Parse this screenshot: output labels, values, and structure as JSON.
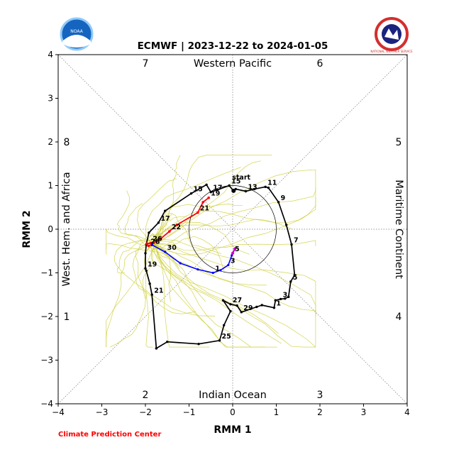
{
  "header": {
    "title": "ECMWF | 2023-12-22 to 2024-01-05",
    "left_logo_text": "NOAA",
    "right_logo_text": "NATIONAL WEATHER SERVICE"
  },
  "footer": {
    "credit": "Climate Prediction Center"
  },
  "colors": {
    "observed": "#000000",
    "dec": "#ff0000",
    "jan": "#0000ff",
    "forecast_mean": "#cc00cc",
    "ensemble": "#cccc33",
    "credit": "#ff0000"
  },
  "chart_data": {
    "type": "line",
    "title": "ECMWF | 2023-12-22 to 2024-01-05",
    "xlabel": "RMM 1",
    "ylabel": "RMM 2",
    "xlim": [
      -4,
      4
    ],
    "ylim": [
      -4,
      4
    ],
    "xticks": [
      -4,
      -3,
      -2,
      -1,
      0,
      1,
      2,
      3,
      4
    ],
    "yticks": [
      -4,
      -3,
      -2,
      -1,
      0,
      1,
      2,
      3,
      4
    ],
    "tick_labels": [
      "−4",
      "−3",
      "−2",
      "−1",
      "0",
      "1",
      "2",
      "3",
      "4"
    ],
    "unit_circle_radius": 1,
    "phases": [
      "1",
      "2",
      "3",
      "4",
      "5",
      "6",
      "7",
      "8"
    ],
    "regions": {
      "top": "Western Pacific",
      "bottom": "Indian Ocean",
      "left": "West. Hem. and Africa",
      "right": "Maritime Continent"
    },
    "start_label": "start",
    "observed_path": [
      {
        "x": -1.75,
        "y": -2.73,
        "l": ""
      },
      {
        "x": -1.5,
        "y": -2.58,
        "l": ""
      },
      {
        "x": -0.78,
        "y": -2.63,
        "l": ""
      },
      {
        "x": -0.3,
        "y": -2.55,
        "l": "25"
      },
      {
        "x": -0.2,
        "y": -2.2,
        "l": ""
      },
      {
        "x": -0.05,
        "y": -1.88,
        "l": ""
      },
      {
        "x": -0.22,
        "y": -1.63,
        "l": ""
      },
      {
        "x": -0.05,
        "y": -1.72,
        "l": "27"
      },
      {
        "x": 0.1,
        "y": -1.75,
        "l": ""
      },
      {
        "x": 0.2,
        "y": -1.9,
        "l": "29"
      },
      {
        "x": 0.55,
        "y": -1.78,
        "l": ""
      },
      {
        "x": 0.67,
        "y": -1.74,
        "l": ""
      },
      {
        "x": 0.95,
        "y": -1.8,
        "l": "1"
      },
      {
        "x": 0.98,
        "y": -1.63,
        "l": ""
      },
      {
        "x": 1.1,
        "y": -1.6,
        "l": "3"
      },
      {
        "x": 1.2,
        "y": -1.59,
        "l": ""
      },
      {
        "x": 1.28,
        "y": -1.55,
        "l": ""
      },
      {
        "x": 1.33,
        "y": -1.2,
        "l": "5"
      },
      {
        "x": 1.42,
        "y": -1.05,
        "l": ""
      },
      {
        "x": 1.35,
        "y": -0.35,
        "l": "7"
      },
      {
        "x": 1.23,
        "y": 0.1,
        "l": ""
      },
      {
        "x": 1.05,
        "y": 0.62,
        "l": "9"
      },
      {
        "x": 0.82,
        "y": 0.95,
        "l": ""
      },
      {
        "x": 0.75,
        "y": 0.97,
        "l": "11"
      },
      {
        "x": 0.5,
        "y": 0.92,
        "l": ""
      },
      {
        "x": 0.3,
        "y": 0.87,
        "l": "13"
      },
      {
        "x": 0.07,
        "y": 0.92,
        "l": ""
      },
      {
        "x": 0.02,
        "y": 0.88,
        "l": ""
      },
      {
        "x": -0.08,
        "y": 1.0,
        "l": "15"
      },
      {
        "x": -0.35,
        "y": 0.9,
        "l": ""
      },
      {
        "x": -0.5,
        "y": 0.85,
        "l": "17"
      },
      {
        "x": -0.6,
        "y": 1.02,
        "l": ""
      },
      {
        "x": -0.95,
        "y": 0.82,
        "l": "15"
      },
      {
        "x": -1.55,
        "y": 0.42,
        "l": ""
      },
      {
        "x": -1.7,
        "y": 0.15,
        "l": "17"
      },
      {
        "x": -1.92,
        "y": -0.08,
        "l": ""
      },
      {
        "x": -1.98,
        "y": -0.35,
        "l": ""
      },
      {
        "x": -2.0,
        "y": -0.55,
        "l": ""
      },
      {
        "x": -2.0,
        "y": -0.9,
        "l": "19"
      },
      {
        "x": -1.98,
        "y": -0.95,
        "l": ""
      },
      {
        "x": -1.9,
        "y": -1.25,
        "l": ""
      },
      {
        "x": -1.85,
        "y": -1.5,
        "l": "21"
      },
      {
        "x": -1.75,
        "y": -2.73,
        "l": ""
      }
    ],
    "forecast_dec": [
      {
        "x": -0.55,
        "y": 0.72,
        "l": "19"
      },
      {
        "x": -0.68,
        "y": 0.62,
        "l": ""
      },
      {
        "x": -0.8,
        "y": 0.38,
        "l": "21"
      },
      {
        "x": -1.28,
        "y": 0.1,
        "l": ""
      },
      {
        "x": -1.45,
        "y": -0.05,
        "l": "22"
      },
      {
        "x": -1.65,
        "y": -0.22,
        "l": ""
      },
      {
        "x": -1.75,
        "y": -0.28,
        "l": ""
      },
      {
        "x": -1.88,
        "y": -0.32,
        "l": "26"
      },
      {
        "x": -1.97,
        "y": -0.33,
        "l": ""
      },
      {
        "x": -1.93,
        "y": -0.38,
        "l": "28"
      },
      {
        "x": -1.85,
        "y": -0.36,
        "l": ""
      }
    ],
    "forecast_jan": [
      {
        "x": -1.85,
        "y": -0.36,
        "l": ""
      },
      {
        "x": -1.55,
        "y": -0.52,
        "l": "30"
      },
      {
        "x": -1.2,
        "y": -0.78,
        "l": ""
      },
      {
        "x": -0.8,
        "y": -0.92,
        "l": ""
      },
      {
        "x": -0.45,
        "y": -1.0,
        "l": "1"
      },
      {
        "x": -0.28,
        "y": -0.94,
        "l": ""
      },
      {
        "x": -0.1,
        "y": -0.82,
        "l": "3"
      },
      {
        "x": -0.02,
        "y": -0.6,
        "l": ""
      },
      {
        "x": 0.0,
        "y": -0.55,
        "l": "5"
      }
    ],
    "forecast_end": [
      {
        "x": 0.0,
        "y": -0.55,
        "l": ""
      },
      {
        "x": 0.05,
        "y": -0.45,
        "l": ""
      }
    ],
    "start_point": {
      "x": 0.02,
      "y": 0.88
    }
  }
}
